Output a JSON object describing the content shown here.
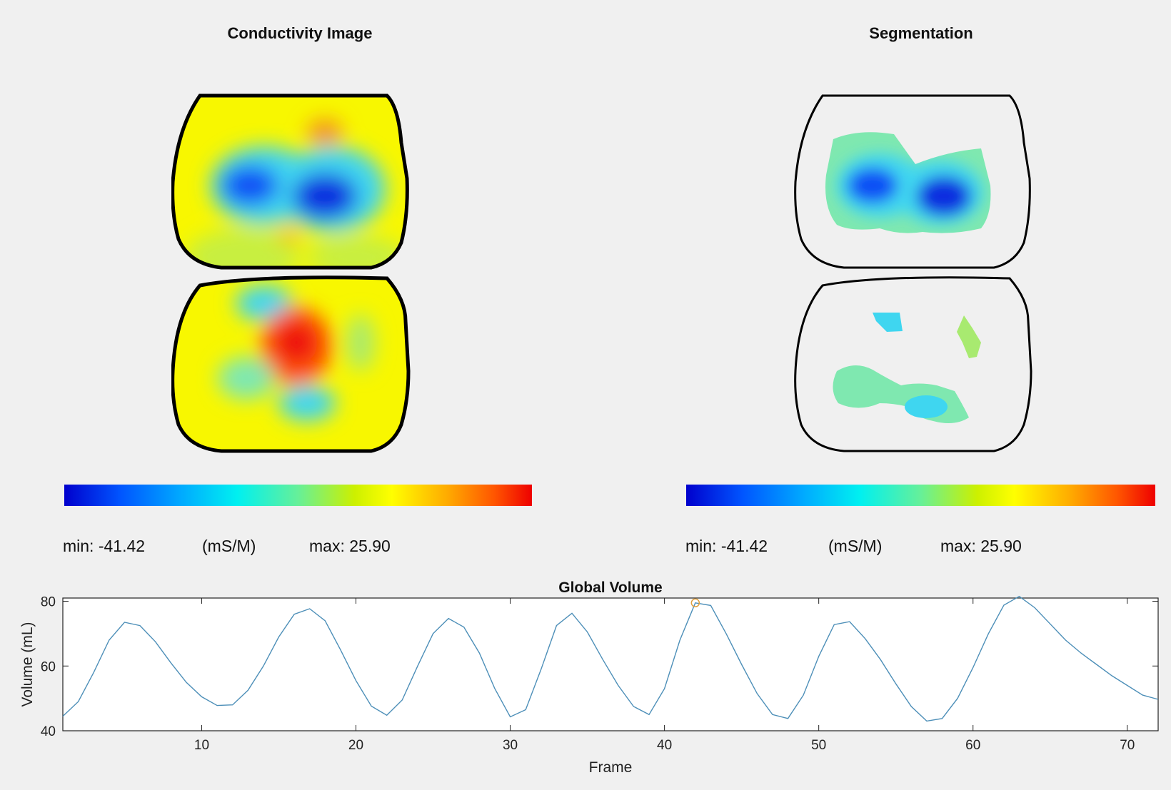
{
  "panels": {
    "left": {
      "title": "Conductivity Image",
      "min_label": "min: -41.42",
      "units": "(mS/M)",
      "max_label": "max:  25.90"
    },
    "right": {
      "title": "Segmentation",
      "min_label": "min: -41.42",
      "units": "(mS/M)",
      "max_label": "max: 25.90"
    }
  },
  "colormap": [
    "#0000cd",
    "#0055ff",
    "#00aaff",
    "#00f0f0",
    "#66f099",
    "#ccf000",
    "#ffff00",
    "#ffaa00",
    "#ff5500",
    "#ee0000"
  ],
  "chart_data": {
    "type": "line",
    "title": "Global Volume",
    "xlabel": "Frame",
    "ylabel": "Volume (mL)",
    "xlim": [
      1,
      72
    ],
    "ylim": [
      40,
      81
    ],
    "xticks": [
      10,
      20,
      30,
      40,
      50,
      60,
      70
    ],
    "yticks": [
      40,
      60,
      80
    ],
    "grid": false,
    "line_color": "#4d8fb8",
    "marker_color": "#e0a040",
    "x": [
      1,
      2,
      3,
      4,
      5,
      6,
      7,
      8,
      9,
      10,
      11,
      12,
      13,
      14,
      15,
      16,
      17,
      18,
      19,
      20,
      21,
      22,
      23,
      24,
      25,
      26,
      27,
      28,
      29,
      30,
      31,
      32,
      33,
      34,
      35,
      36,
      37,
      38,
      39,
      40,
      41,
      42,
      43,
      44,
      45,
      46,
      47,
      48,
      49,
      50,
      51,
      52,
      53,
      54,
      55,
      56,
      57,
      58,
      59,
      60,
      61,
      62,
      63,
      64,
      65,
      66,
      67,
      68,
      69,
      70,
      71,
      72
    ],
    "values": [
      44.5,
      49,
      58,
      68,
      73.5,
      72.5,
      67.5,
      61,
      55,
      50.5,
      47.8,
      48,
      52.5,
      60,
      69,
      76,
      77.7,
      74,
      65,
      55.5,
      47.6,
      44.8,
      49.5,
      60,
      70,
      74.7,
      72,
      64,
      53,
      44.3,
      46.5,
      59,
      72.5,
      76.3,
      70.5,
      62,
      54,
      47.5,
      45,
      53,
      68,
      79.5,
      78.7,
      70,
      60.5,
      51.5,
      45,
      43.8,
      51,
      63,
      72.8,
      73.7,
      68.5,
      62,
      54.5,
      47.5,
      43,
      43.8,
      50,
      59.5,
      70,
      78.8,
      81.5,
      78,
      73,
      68,
      64,
      60.5,
      57,
      54,
      51,
      49.7
    ],
    "marker": {
      "x": 42,
      "y": 79.5
    }
  }
}
